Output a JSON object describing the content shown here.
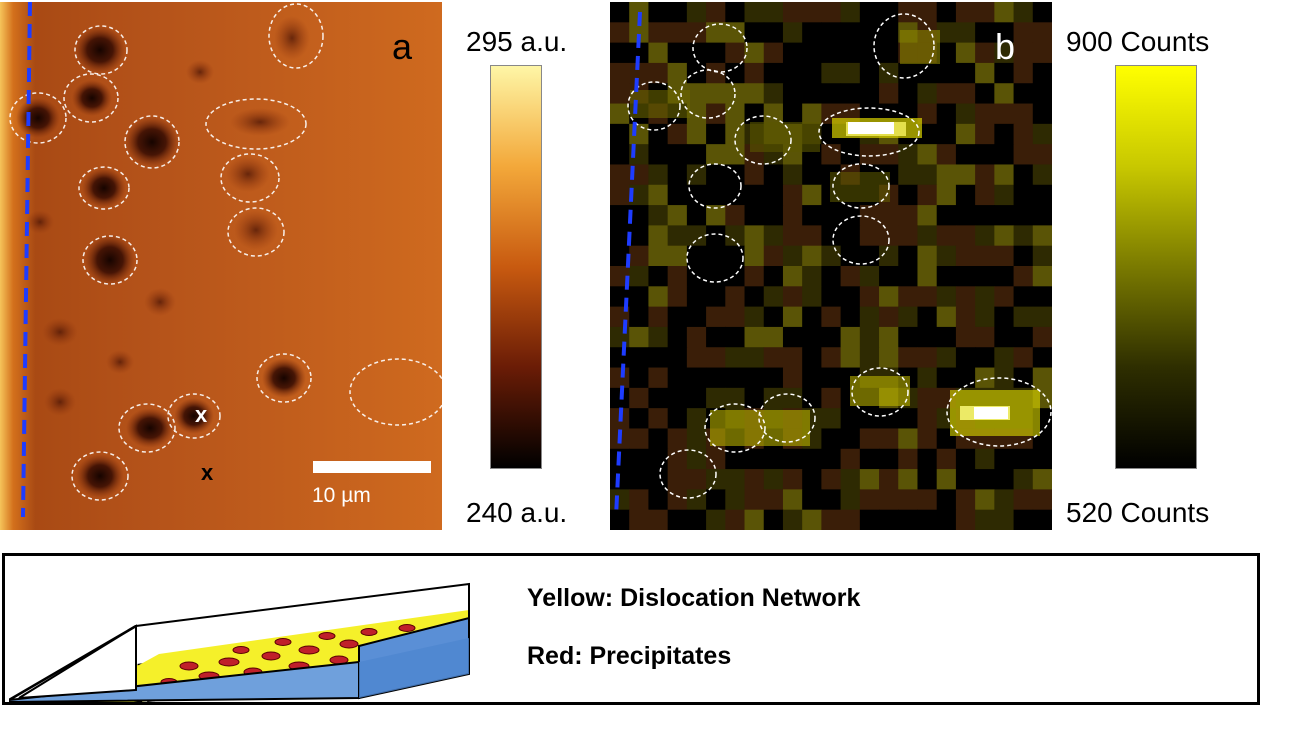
{
  "panel_a": {
    "letter": "a",
    "scalebar_label": "10 µm",
    "marker": "x",
    "colorbar": {
      "max_label": "295 a.u.",
      "min_label": "240 a.u.",
      "colors": [
        "#fef6a6",
        "#f3a83a",
        "#c85a10",
        "#6a1c06",
        "#000000"
      ]
    }
  },
  "panel_b": {
    "letter": "b",
    "colorbar": {
      "max_label": "900 Counts",
      "min_label": "520 Counts",
      "colors": [
        "#ffff00",
        "#c8c800",
        "#7a7a00",
        "#2e2e00",
        "#000000"
      ]
    }
  },
  "legend": {
    "line1": "Yellow: Dislocation Network",
    "line2": "Red: Precipitates"
  }
}
